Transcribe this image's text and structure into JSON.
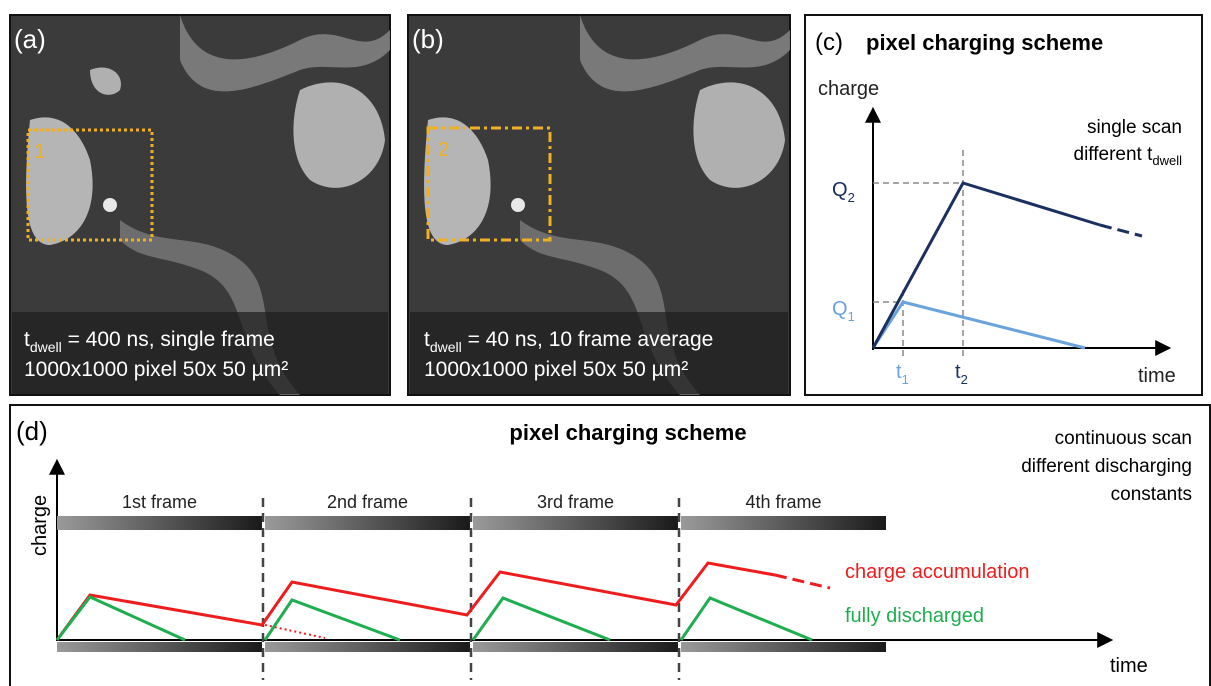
{
  "panels": {
    "a": {
      "label": "(a)",
      "roi_label": "1",
      "caption_symbol": "t",
      "caption_subscript": "dwell",
      "caption_text": " = 400 ns, single frame",
      "caption_line2": "1000x1000 pixel  50x 50 µm²"
    },
    "b": {
      "label": "(b)",
      "roi_label": "2",
      "caption_symbol": "t",
      "caption_subscript": "dwell",
      "caption_text": " = 40 ns, 10 frame average",
      "caption_line2": "1000x1000 pixel  50x 50 µm²"
    },
    "c": {
      "label": "(c)",
      "title": "pixel charging scheme",
      "y_axis_label": "charge",
      "x_axis_label": "time",
      "note_line1": "single scan",
      "note_line2": "different t",
      "note_line2_subscript": "dwell",
      "q2": "Q",
      "q2_subscript": "2",
      "q1": "Q",
      "q1_subscript": "1",
      "t1": "t",
      "t1_subscript": "1",
      "t2": "t",
      "t2_subscript": "2"
    },
    "d": {
      "label": "(d)",
      "title": "pixel charging scheme",
      "y_axis_label": "charge",
      "x_axis_label": "time",
      "note_lines": [
        "continuous scan",
        "different discharging",
        "constants"
      ],
      "frames": [
        "1st frame",
        "2nd frame",
        "3rd frame",
        "4th frame"
      ],
      "legend": [
        "charge accumulation",
        "fully discharged"
      ]
    }
  }
}
